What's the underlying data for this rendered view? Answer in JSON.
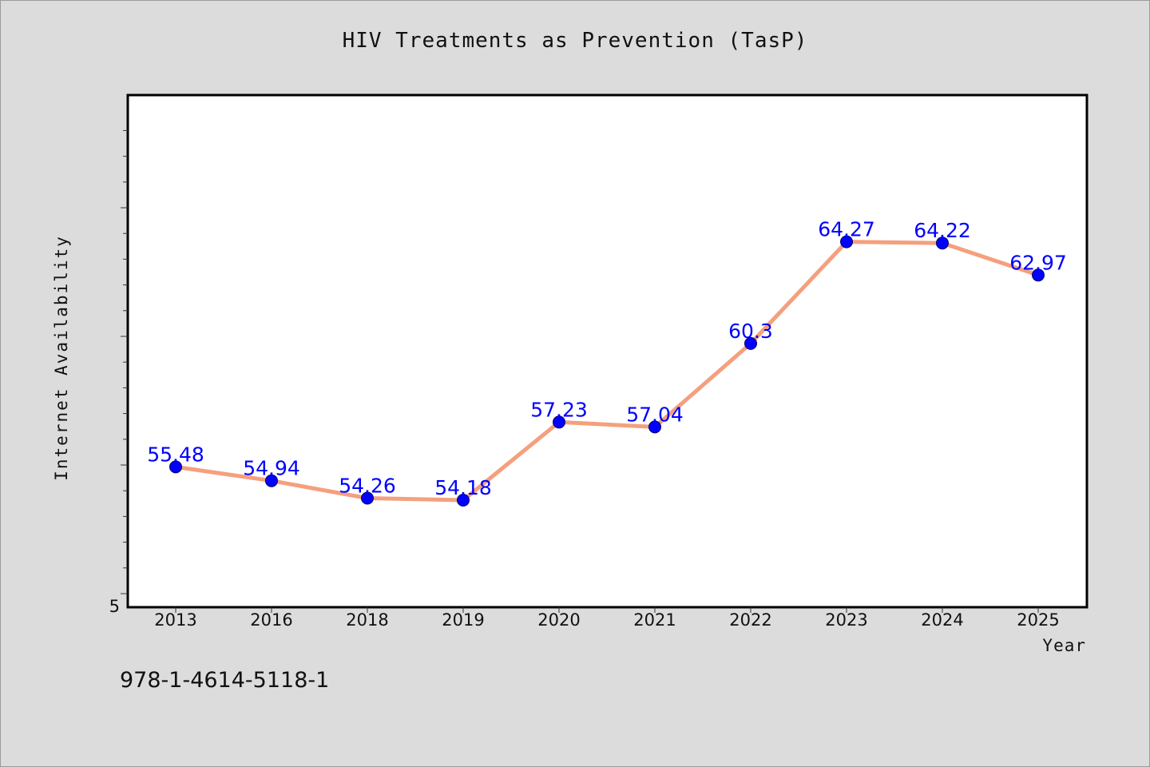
{
  "footnote": "978-1-4614-5118-1",
  "chart_data": {
    "type": "line",
    "title": "HIV Treatments as Prevention (TasP)",
    "xlabel": "Year",
    "ylabel": "Internet Availability",
    "categories": [
      "2013",
      "2016",
      "2018",
      "2019",
      "2020",
      "2021",
      "2022",
      "2023",
      "2024",
      "2025"
    ],
    "series": [
      {
        "values": [
          55.48,
          54.94,
          54.26,
          54.18,
          57.23,
          57.04,
          60.3,
          64.27,
          64.22,
          62.97
        ],
        "labels": [
          "55.48",
          "54.94",
          "54.26",
          "54.18",
          "57.23",
          "57.04",
          "60.3",
          "64.27",
          "64.22",
          "62.97"
        ]
      }
    ],
    "y_tick_labels": [
      "5"
    ],
    "ylim": [
      50,
      70
    ],
    "grid": false,
    "legend": "none",
    "line_color": "#f4a07e",
    "marker_color": "#0000ff",
    "label_color": "#0000ff"
  }
}
